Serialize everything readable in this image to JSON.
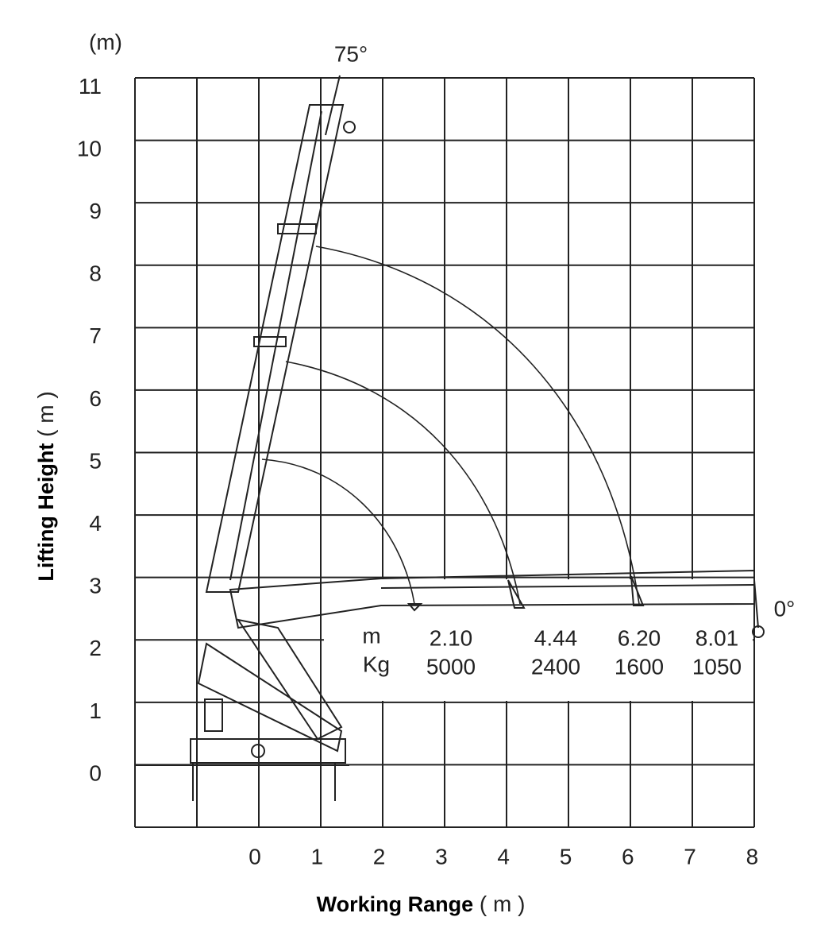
{
  "unit_label": "(m)",
  "y_axis": {
    "label": "Lifting Height",
    "unit": "( m )",
    "ticks": [
      0,
      1,
      2,
      3,
      4,
      5,
      6,
      7,
      8,
      9,
      10,
      11
    ]
  },
  "x_axis": {
    "label": "Working Range",
    "unit": "( m )",
    "ticks": [
      0,
      1,
      2,
      3,
      4,
      5,
      6,
      7,
      8
    ]
  },
  "angles": {
    "max": "75°",
    "min": "0°"
  },
  "load_table": {
    "reach_header": "m",
    "load_header": "Kg",
    "columns": [
      {
        "reach": "2.10",
        "load": "5000"
      },
      {
        "reach": "4.44",
        "load": "2400"
      },
      {
        "reach": "6.20",
        "load": "1600"
      },
      {
        "reach": "8.01",
        "load": "1050"
      }
    ]
  }
}
